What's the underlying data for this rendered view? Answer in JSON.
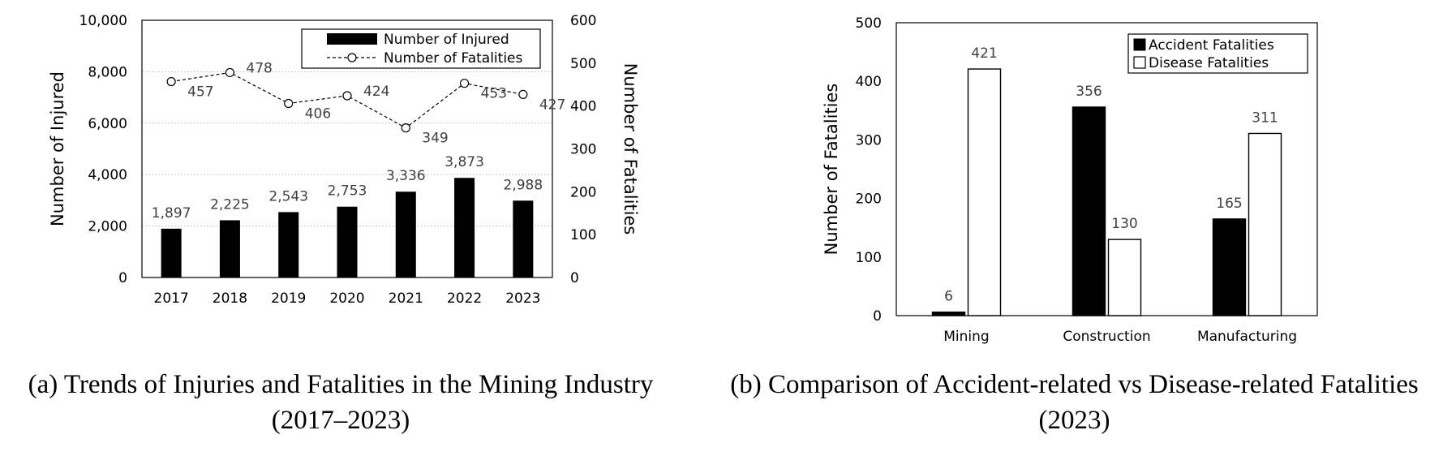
{
  "chart_data": [
    {
      "type": "bar",
      "id": "a",
      "caption_line1": "(a) Trends of Injuries and Fatalities in the Mining Industry",
      "caption_line2": "(2017–2023)",
      "categories": [
        "2017",
        "2018",
        "2019",
        "2020",
        "2021",
        "2022",
        "2023"
      ],
      "series": [
        {
          "name": "Number of Injured",
          "type": "bar",
          "axis": "left",
          "values": [
            1897,
            2225,
            2543,
            2753,
            3336,
            3873,
            2988
          ],
          "labels": [
            "1,897",
            "2,225",
            "2,543",
            "2,753",
            "3,336",
            "3,873",
            "2,988"
          ],
          "color": "#000000"
        },
        {
          "name": "Number of Fatalities",
          "type": "line",
          "style": "dashed",
          "marker": "open-circle",
          "axis": "right",
          "values": [
            457,
            478,
            406,
            424,
            349,
            453,
            427
          ],
          "labels": [
            "457",
            "478",
            "406",
            "424",
            "349",
            "453",
            "427"
          ],
          "color": "#000000"
        }
      ],
      "ylabel": "Number of Injured",
      "y2label": "Number of Fatalities",
      "ylim": [
        0,
        10000
      ],
      "y2lim": [
        0,
        600
      ],
      "yticks": [
        "0",
        "2,000",
        "4,000",
        "6,000",
        "8,000",
        "10,000"
      ],
      "y2ticks": [
        "0",
        "100",
        "200",
        "300",
        "400",
        "500",
        "600"
      ],
      "grid": true,
      "legend": "top-right"
    },
    {
      "type": "bar",
      "id": "b",
      "caption_line1": "(b) Comparison of Accident-related vs Disease-related Fatalities",
      "caption_line2": "(2023)",
      "categories": [
        "Mining",
        "Construction",
        "Manufacturing"
      ],
      "series": [
        {
          "name": "Accident Fatalities",
          "values": [
            6,
            356,
            165
          ],
          "color": "#000000",
          "fill": "solid"
        },
        {
          "name": "Disease Fatalities",
          "values": [
            421,
            130,
            311
          ],
          "color": "#ffffff",
          "fill": "open"
        }
      ],
      "ylabel": "Number of Fatalities",
      "ylim": [
        0,
        500
      ],
      "yticks": [
        "0",
        "100",
        "200",
        "300",
        "400",
        "500"
      ],
      "grid": false,
      "legend": "top-right"
    }
  ]
}
